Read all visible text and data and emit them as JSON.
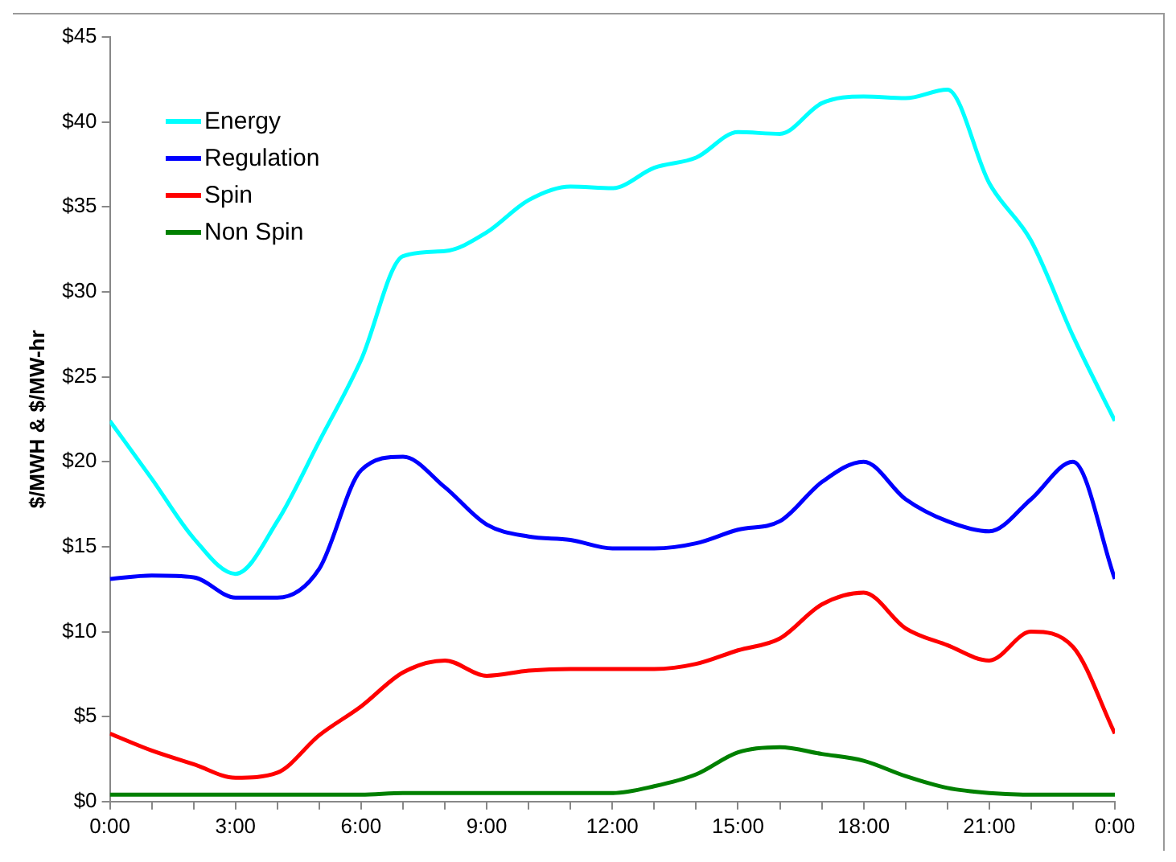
{
  "chart_data": {
    "type": "line",
    "ylabel": "$/MWH & $/MW-hr",
    "x": [
      0,
      1,
      2,
      3,
      4,
      5,
      6,
      7,
      8,
      9,
      10,
      11,
      12,
      13,
      14,
      15,
      16,
      17,
      18,
      19,
      20,
      21,
      22,
      23,
      24
    ],
    "series": [
      {
        "name": "Energy",
        "color": "#00ffff",
        "values": [
          22.4,
          19.0,
          15.5,
          13.4,
          16.5,
          21.2,
          26.0,
          32.1,
          32.4,
          33.5,
          35.4,
          36.2,
          36.1,
          37.3,
          37.9,
          39.4,
          39.3,
          41.1,
          41.5,
          41.4,
          41.9,
          36.4,
          33.0,
          27.4,
          22.4
        ]
      },
      {
        "name": "Regulation",
        "color": "#0000ff",
        "values": [
          13.1,
          13.3,
          13.2,
          12.0,
          12.0,
          13.7,
          19.5,
          20.3,
          18.5,
          16.3,
          15.6,
          15.4,
          14.9,
          14.9,
          15.2,
          16.0,
          16.5,
          18.8,
          20.0,
          17.8,
          16.5,
          15.9,
          17.8,
          20.0,
          13.1
        ]
      },
      {
        "name": "Spin",
        "color": "#ff0000",
        "values": [
          4.0,
          3.0,
          2.2,
          1.4,
          1.7,
          3.9,
          5.6,
          7.6,
          8.3,
          7.4,
          7.7,
          7.8,
          7.8,
          7.8,
          8.1,
          8.9,
          9.6,
          11.6,
          12.3,
          10.2,
          9.2,
          8.3,
          10.0,
          9.1,
          4.0
        ]
      },
      {
        "name": "Non Spin",
        "color": "#008000",
        "values": [
          0.4,
          0.4,
          0.4,
          0.4,
          0.4,
          0.4,
          0.4,
          0.5,
          0.5,
          0.5,
          0.5,
          0.5,
          0.5,
          0.9,
          1.6,
          2.9,
          3.2,
          2.8,
          2.4,
          1.5,
          0.8,
          0.5,
          0.4,
          0.4,
          0.4
        ]
      }
    ],
    "xlim": [
      0,
      24
    ],
    "xticks": [
      {
        "value": 0,
        "label": "0:00"
      },
      {
        "value": 1,
        "label": null
      },
      {
        "value": 2,
        "label": null
      },
      {
        "value": 3,
        "label": "3:00"
      },
      {
        "value": 4,
        "label": null
      },
      {
        "value": 5,
        "label": null
      },
      {
        "value": 6,
        "label": "6:00"
      },
      {
        "value": 7,
        "label": null
      },
      {
        "value": 8,
        "label": null
      },
      {
        "value": 9,
        "label": "9:00"
      },
      {
        "value": 10,
        "label": null
      },
      {
        "value": 11,
        "label": null
      },
      {
        "value": 12,
        "label": "12:00"
      },
      {
        "value": 13,
        "label": null
      },
      {
        "value": 14,
        "label": null
      },
      {
        "value": 15,
        "label": "15:00"
      },
      {
        "value": 16,
        "label": null
      },
      {
        "value": 17,
        "label": null
      },
      {
        "value": 18,
        "label": "18:00"
      },
      {
        "value": 19,
        "label": null
      },
      {
        "value": 20,
        "label": null
      },
      {
        "value": 21,
        "label": "21:00"
      },
      {
        "value": 22,
        "label": null
      },
      {
        "value": 23,
        "label": null
      },
      {
        "value": 24,
        "label": "0:00"
      }
    ],
    "ylim": [
      0,
      45
    ],
    "yticks": [
      {
        "value": 0,
        "label": "$0"
      },
      {
        "value": 5,
        "label": "$5"
      },
      {
        "value": 10,
        "label": "$10"
      },
      {
        "value": 15,
        "label": "$15"
      },
      {
        "value": 20,
        "label": "$20"
      },
      {
        "value": 25,
        "label": "$25"
      },
      {
        "value": 30,
        "label": "$30"
      },
      {
        "value": 35,
        "label": "$35"
      },
      {
        "value": 40,
        "label": "$40"
      },
      {
        "value": 45,
        "label": "$45"
      }
    ],
    "grid": false,
    "legend": "top left",
    "marker": "none",
    "line_style": "solid"
  }
}
